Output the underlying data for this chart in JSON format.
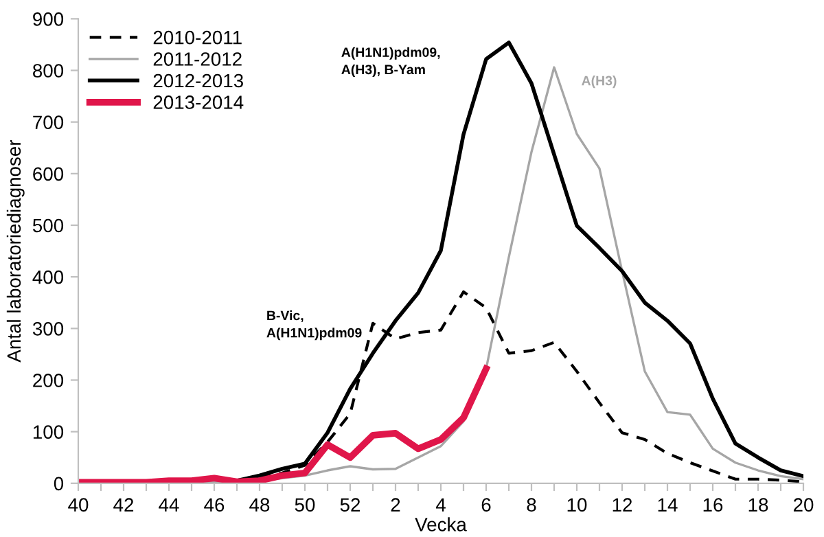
{
  "chart_data": {
    "type": "line",
    "xlabel": "Vecka",
    "ylabel": "Antal laboratoriediagnoser",
    "categories": [
      "40",
      null,
      "42",
      null,
      "44",
      null,
      "46",
      null,
      "48",
      null,
      "50",
      null,
      "52",
      null,
      "2",
      null,
      "4",
      null,
      "6",
      null,
      "8",
      null,
      "10",
      null,
      "12",
      null,
      "14",
      null,
      "16",
      null,
      "18",
      null,
      "20"
    ],
    "series": [
      {
        "name": "2010-2011",
        "color": "#000000",
        "line_style": "dashed",
        "values": [
          null,
          null,
          null,
          null,
          null,
          null,
          null,
          null,
          10,
          20,
          35,
          80,
          135,
          310,
          280,
          292,
          297,
          371,
          340,
          252,
          257,
          273,
          217,
          156,
          98,
          85,
          58,
          40,
          24,
          8,
          8,
          6,
          3
        ]
      },
      {
        "name": "2011-2012",
        "color": "#a6a6a6",
        "line_style": "solid",
        "values": [
          0,
          0,
          0,
          0,
          1,
          2,
          3,
          2,
          5,
          10,
          15,
          25,
          33,
          27,
          28,
          50,
          72,
          120,
          222,
          438,
          642,
          806,
          677,
          610,
          411,
          217,
          138,
          133,
          67,
          40,
          25,
          14,
          8
        ]
      },
      {
        "name": "2012-2013",
        "color": "#000000",
        "line_style": "solid",
        "values": [
          null,
          null,
          null,
          null,
          null,
          null,
          null,
          5,
          15,
          28,
          38,
          98,
          183,
          252,
          315,
          369,
          451,
          676,
          822,
          854,
          775,
          637,
          499,
          456,
          411,
          350,
          315,
          271,
          164,
          77,
          50,
          25,
          14
        ]
      },
      {
        "name": "2013-2014",
        "color": "#e0164a",
        "line_style": "solid",
        "values": [
          2,
          2,
          2,
          2,
          5,
          5,
          10,
          3,
          5,
          15,
          20,
          75,
          50,
          93,
          97,
          67,
          85,
          127,
          222,
          null,
          null,
          null,
          null,
          null,
          null,
          null,
          null,
          null,
          null,
          null,
          null,
          null,
          null
        ]
      }
    ],
    "ylim": [
      0,
      900
    ],
    "yticks": [
      0,
      100,
      200,
      300,
      400,
      500,
      600,
      700,
      800,
      900
    ],
    "grid": false,
    "legend": "top left",
    "marker": "none",
    "annotations": [
      "B-Vic,\nA(H1N1)pdm09",
      "A(H1N1)pdm09,\nA(H3), B-Yam",
      "A(H3)"
    ]
  }
}
